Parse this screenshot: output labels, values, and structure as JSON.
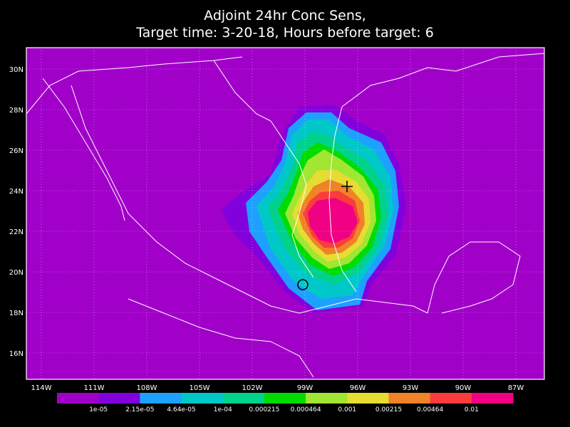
{
  "title": [
    "Adjoint 24hr Conc Sens,",
    "Target time: 3-20-18, Hours before target: 6"
  ],
  "lat_labels": [
    "30N",
    "28N",
    "26N",
    "24N",
    "22N",
    "20N",
    "18N",
    "16N"
  ],
  "lon_labels": [
    "114W",
    "111W",
    "108W",
    "105W",
    "102W",
    "99W",
    "96W",
    "93W",
    "90W",
    "87W"
  ],
  "colorbar": {
    "labels": [
      "1e-05",
      "2.15e-05",
      "4.64e-05",
      "1e-04",
      "0.000215",
      "0.000464",
      "0.001",
      "0.00215",
      "0.00464",
      "0.01"
    ],
    "colors": [
      "#a000c8",
      "#8200dc",
      "#1ea0ff",
      "#00c8c8",
      "#00d28c",
      "#00dc00",
      "#a0e632",
      "#e6dc32",
      "#f08228",
      "#fa3c3c",
      "#f00082"
    ]
  }
}
